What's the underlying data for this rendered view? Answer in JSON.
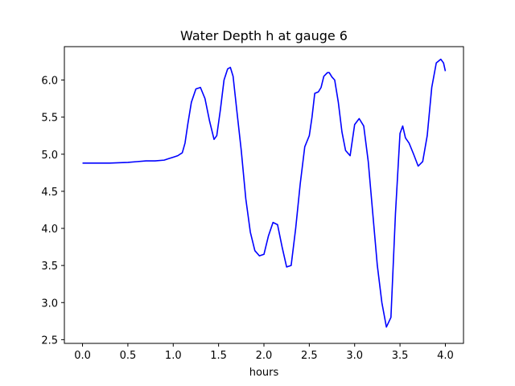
{
  "chart_data": {
    "type": "line",
    "title": "Water Depth h at gauge 6",
    "xlabel": "hours",
    "ylabel": "",
    "xlim": [
      -0.2,
      4.2
    ],
    "ylim": [
      2.45,
      6.45
    ],
    "x_ticks": [
      0.0,
      0.5,
      1.0,
      1.5,
      2.0,
      2.5,
      3.0,
      3.5,
      4.0
    ],
    "x_tick_labels": [
      "0.0",
      "0.5",
      "1.0",
      "1.5",
      "2.0",
      "2.5",
      "3.0",
      "3.5",
      "4.0"
    ],
    "y_ticks": [
      2.5,
      3.0,
      3.5,
      4.0,
      4.5,
      5.0,
      5.5,
      6.0
    ],
    "y_tick_labels": [
      "2.5",
      "3.0",
      "3.5",
      "4.0",
      "4.5",
      "5.0",
      "5.5",
      "6.0"
    ],
    "grid": false,
    "series": [
      {
        "color": "#0000ff",
        "x": [
          0.0,
          0.3,
          0.5,
          0.6,
          0.7,
          0.8,
          0.9,
          0.95,
          1.0,
          1.05,
          1.1,
          1.13,
          1.16,
          1.2,
          1.25,
          1.3,
          1.35,
          1.4,
          1.45,
          1.48,
          1.52,
          1.56,
          1.6,
          1.63,
          1.66,
          1.7,
          1.75,
          1.8,
          1.85,
          1.9,
          1.95,
          2.0,
          2.05,
          2.1,
          2.15,
          2.2,
          2.25,
          2.3,
          2.35,
          2.4,
          2.45,
          2.5,
          2.53,
          2.56,
          2.6,
          2.63,
          2.66,
          2.7,
          2.72,
          2.75,
          2.78,
          2.82,
          2.86,
          2.9,
          2.95,
          3.0,
          3.05,
          3.1,
          3.15,
          3.2,
          3.25,
          3.3,
          3.35,
          3.4,
          3.45,
          3.5,
          3.53,
          3.56,
          3.6,
          3.65,
          3.7,
          3.75,
          3.8,
          3.85,
          3.9,
          3.95,
          3.98,
          4.0
        ],
        "y": [
          4.88,
          4.88,
          4.89,
          4.9,
          4.91,
          4.91,
          4.92,
          4.94,
          4.96,
          4.98,
          5.02,
          5.15,
          5.4,
          5.7,
          5.88,
          5.9,
          5.75,
          5.45,
          5.2,
          5.25,
          5.6,
          6.0,
          6.15,
          6.17,
          6.05,
          5.6,
          5.05,
          4.4,
          3.95,
          3.7,
          3.63,
          3.65,
          3.9,
          4.08,
          4.05,
          3.75,
          3.48,
          3.5,
          4.0,
          4.6,
          5.1,
          5.25,
          5.5,
          5.82,
          5.84,
          5.9,
          6.05,
          6.1,
          6.1,
          6.04,
          6.0,
          5.7,
          5.3,
          5.05,
          4.98,
          5.4,
          5.48,
          5.38,
          4.9,
          4.2,
          3.5,
          3.0,
          2.67,
          2.8,
          4.2,
          5.28,
          5.38,
          5.22,
          5.15,
          5.0,
          4.84,
          4.9,
          5.25,
          5.9,
          6.23,
          6.28,
          6.23,
          6.12
        ]
      }
    ]
  }
}
